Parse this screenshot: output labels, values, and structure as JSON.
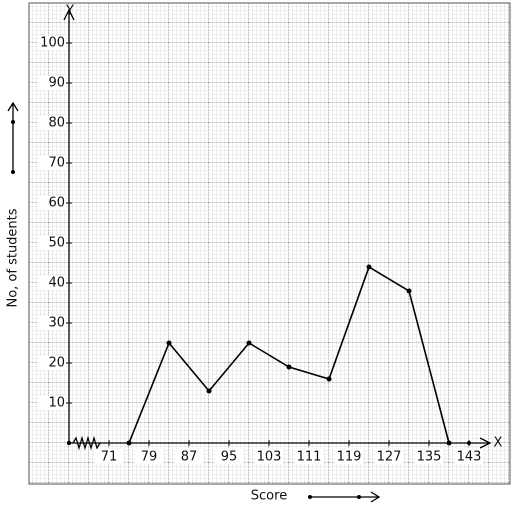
{
  "chart_data": {
    "type": "line",
    "x_label": "Score",
    "y_label": "No, of students",
    "x_axis_name": "X",
    "y_axis_name": "Y",
    "x": [
      75,
      83,
      91,
      99,
      107,
      115,
      123,
      131,
      139
    ],
    "values": [
      0,
      25,
      13,
      25,
      19,
      16,
      44,
      38,
      0
    ],
    "color": "#000000",
    "xlim": [
      63,
      147
    ],
    "ylim": [
      0,
      108
    ],
    "xticks": [
      71,
      79,
      87,
      95,
      103,
      111,
      119,
      127,
      135,
      143
    ],
    "yticks": [
      10,
      20,
      30,
      40,
      50,
      60,
      70,
      80,
      90,
      100
    ],
    "grid": true
  }
}
